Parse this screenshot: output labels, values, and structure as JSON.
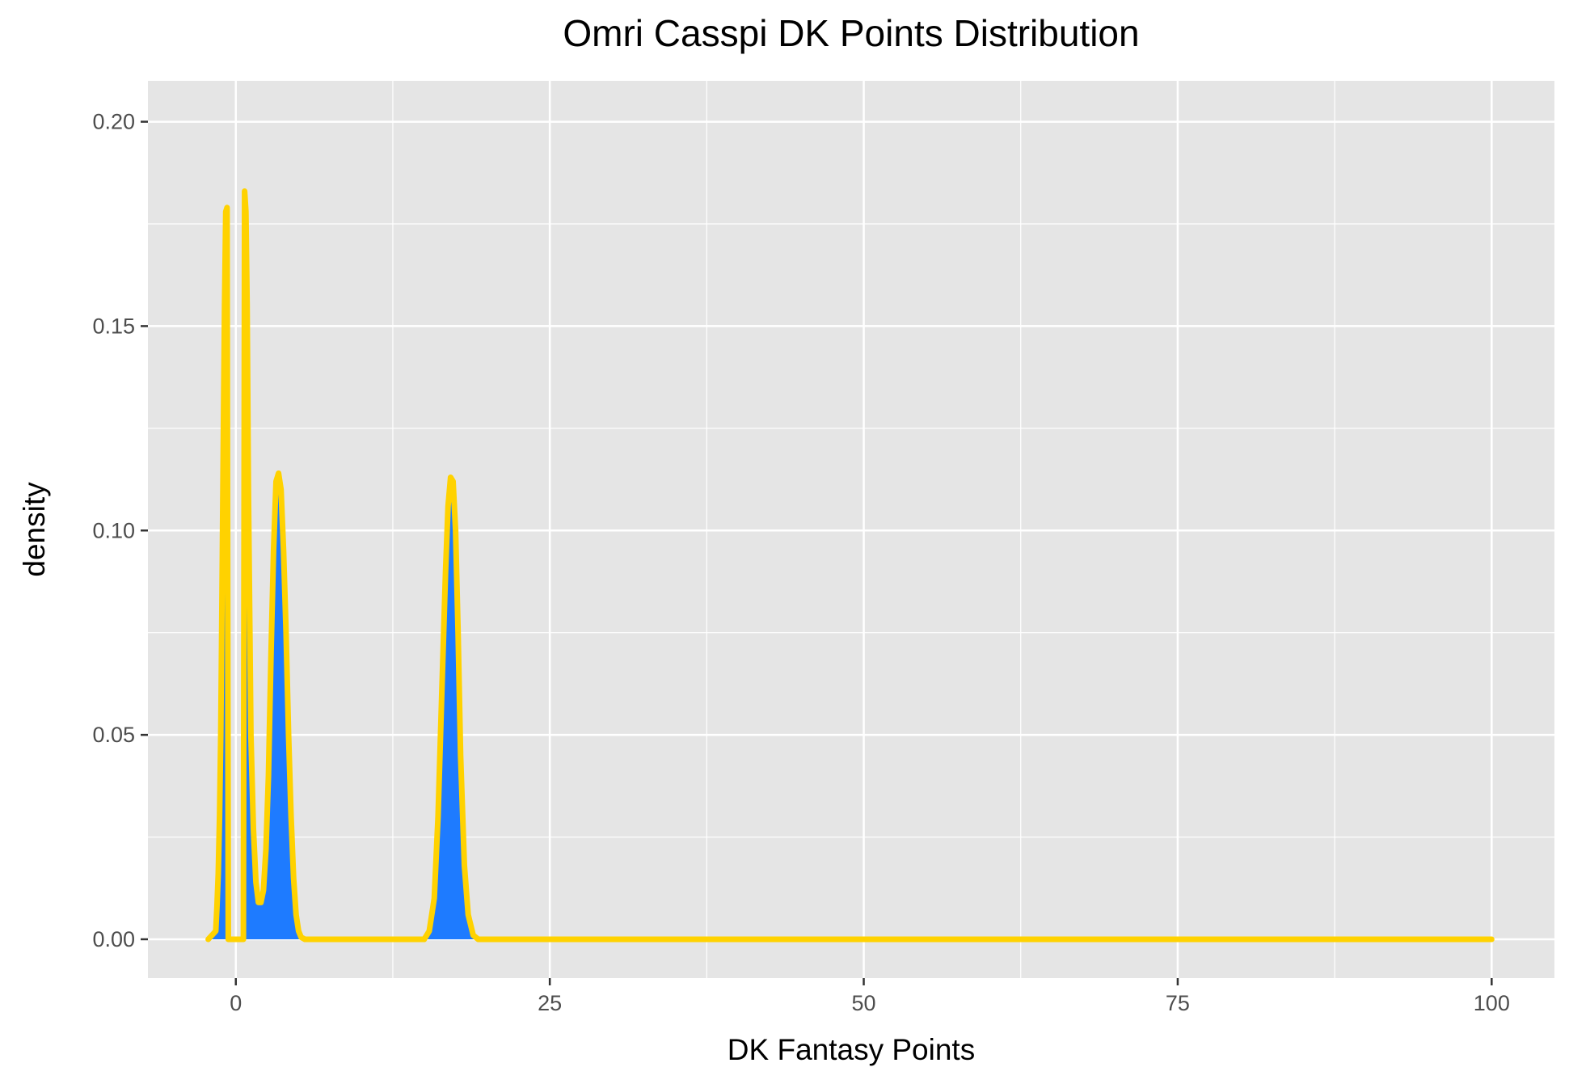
{
  "chart_data": {
    "type": "area",
    "title": "Omri Casspi DK Points Distribution",
    "xlabel": "DK Fantasy Points",
    "ylabel": "density",
    "x_ticks": [
      0,
      25,
      50,
      75,
      100
    ],
    "x_tick_labels": [
      "0",
      "25",
      "50",
      "75",
      "100"
    ],
    "y_ticks": [
      0,
      0.05,
      0.1,
      0.15,
      0.2
    ],
    "y_tick_labels": [
      "0.00",
      "0.05",
      "0.10",
      "0.15",
      "0.20"
    ],
    "xlim": [
      -7,
      105
    ],
    "ylim": [
      -0.0095,
      0.21
    ],
    "grid": true,
    "legend": "none",
    "colors": {
      "panel": "#e5e5e5",
      "grid": "#ffffff",
      "fill": "#1e7bff",
      "line": "#ffd200",
      "axis_text": "#4d4d4d"
    },
    "series": [
      {
        "x": [
          -2.2,
          -1.6,
          -1.5,
          -1.4,
          -1.3,
          -1.2,
          -1.1,
          -1.0,
          -0.9,
          -0.8,
          -0.7,
          -0.6,
          0.6,
          0.7,
          0.8,
          0.9,
          1.0,
          1.2,
          1.4,
          1.6,
          1.8,
          2.0,
          2.2,
          2.4,
          2.6,
          2.8,
          3.0,
          3.2,
          3.4,
          3.6,
          3.8,
          4.0,
          4.2,
          4.4,
          4.6,
          4.8,
          5.0,
          5.2,
          5.5,
          6.0,
          8.0,
          12.0,
          15.0,
          15.4,
          15.8,
          16.1,
          16.4,
          16.7,
          16.9,
          17.1,
          17.3,
          17.5,
          17.7,
          17.9,
          18.2,
          18.5,
          18.9,
          19.3,
          20.0,
          30.0,
          50.0,
          75.0,
          100.0
        ],
        "y": [
          0.0,
          0.002,
          0.008,
          0.016,
          0.03,
          0.05,
          0.085,
          0.12,
          0.155,
          0.178,
          0.179,
          0.0,
          0.0,
          0.183,
          0.178,
          0.155,
          0.11,
          0.05,
          0.027,
          0.014,
          0.009,
          0.009,
          0.012,
          0.022,
          0.04,
          0.07,
          0.095,
          0.112,
          0.114,
          0.11,
          0.095,
          0.075,
          0.05,
          0.03,
          0.015,
          0.006,
          0.002,
          0.0005,
          0.0,
          0.0,
          0.0,
          0.0,
          0.0,
          0.002,
          0.01,
          0.03,
          0.06,
          0.09,
          0.106,
          0.113,
          0.112,
          0.1,
          0.075,
          0.045,
          0.018,
          0.006,
          0.001,
          0.0,
          0.0,
          0.0,
          0.0,
          0.0,
          0.0
        ]
      }
    ]
  }
}
